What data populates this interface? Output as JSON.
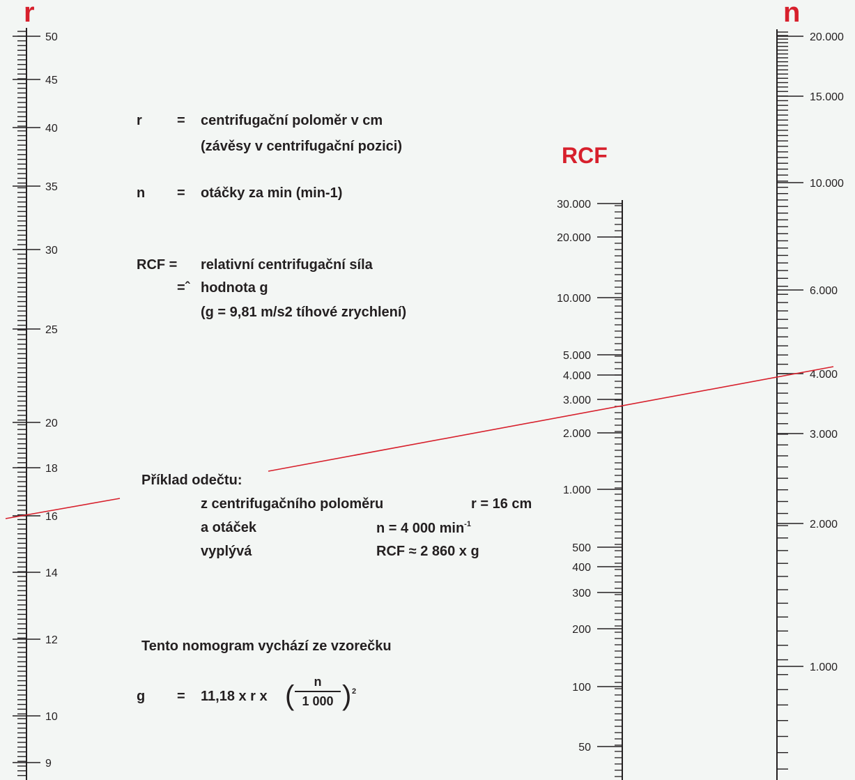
{
  "axes": {
    "r": {
      "title": "r",
      "ticks": [
        "50",
        "45",
        "40",
        "35",
        "30",
        "25",
        "20",
        "18",
        "16",
        "14",
        "12",
        "10",
        "9"
      ]
    },
    "rcf": {
      "title": "RCF",
      "ticks": [
        "30.000",
        "20.000",
        "10.000",
        "5.000",
        "4.000",
        "3.000",
        "2.000",
        "1.000",
        "500",
        "400",
        "300",
        "200",
        "100",
        "50"
      ]
    },
    "n": {
      "title": "n",
      "ticks": [
        "20.000",
        "15.000",
        "10.000",
        "6.000",
        "4.000",
        "3.000",
        "2.000",
        "1.000"
      ]
    }
  },
  "legend": {
    "r_sym": "r",
    "eq": "=",
    "r_def": "centrifugační poloměr v cm",
    "r_def2": "(závěsy v centrifugační pozici)",
    "n_sym": "n",
    "n_def": "otáčky za min (min-1)",
    "rcf_sym": "RCF =",
    "rcf_def": "relativní centrifugační síla",
    "hat_eq": "=ˆ",
    "rcf_def2": "hodnota g",
    "rcf_def3": "(g = 9,81 m/s2 tíhové zrychlení)"
  },
  "example": {
    "heading": "Příklad odečtu:",
    "line1_label": "z centrifugačního poloměru",
    "line1_value": "r = 16 cm",
    "line2_label": "a otáček",
    "line2_value": "n = 4 000 min",
    "line2_sup": "-1",
    "line3_label": "vyplývá",
    "line3_value": "RCF ≈ 2 860 x g"
  },
  "formula": {
    "intro": "Tento nomogram vychází ze vzorečku",
    "g": "g",
    "eq": "=",
    "expr": "11,18 x r x",
    "num": "n",
    "den": "1 000",
    "exp": "2"
  },
  "colors": {
    "accent": "#d7202c",
    "ink": "#231f20",
    "background": "#f3f6f4"
  }
}
